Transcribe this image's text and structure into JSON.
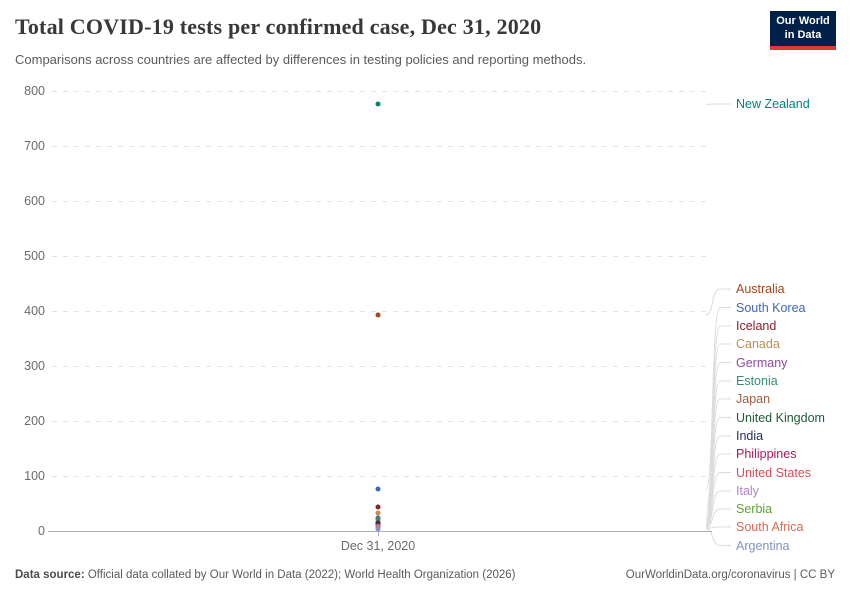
{
  "header": {
    "title": "Total COVID-19 tests per confirmed case, Dec 31, 2020",
    "subtitle": "Comparisons across countries are affected by differences in testing policies and reporting methods.",
    "logo": {
      "line1": "Our World",
      "line2": "in Data",
      "bg": "#002147",
      "stripe": "#D73C34"
    }
  },
  "chart_data": {
    "type": "scatter",
    "title": "Total COVID-19 tests per confirmed case, Dec 31, 2020",
    "x_tick_label": "Dec 31, 2020",
    "xlabel": "",
    "ylabel": "",
    "ylim": [
      0,
      800
    ],
    "yticks": [
      0,
      100,
      200,
      300,
      400,
      500,
      600,
      700,
      800
    ],
    "grid": true,
    "legend_position": "right-labels",
    "series": [
      {
        "name": "New Zealand",
        "value": 776,
        "color": "#00847E",
        "label_y": 104
      },
      {
        "name": "Australia",
        "value": 393,
        "color": "#A2461E",
        "label_y": 289
      },
      {
        "name": "South Korea",
        "value": 76,
        "color": "#4068B2",
        "label_y": 307.5
      },
      {
        "name": "Iceland",
        "value": 43,
        "color": "#8E1F2D",
        "label_y": 326
      },
      {
        "name": "Canada",
        "value": 32,
        "color": "#B98F54",
        "label_y": 344
      },
      {
        "name": "Germany",
        "value": 23,
        "color": "#8C4AA6",
        "label_y": 362.5
      },
      {
        "name": "Estonia",
        "value": 21,
        "color": "#338E71",
        "label_y": 381
      },
      {
        "name": "Japan",
        "value": 17,
        "color": "#9E5B45",
        "label_y": 399
      },
      {
        "name": "United Kingdom",
        "value": 14,
        "color": "#1D5D35",
        "label_y": 417.5
      },
      {
        "name": "India",
        "value": 12,
        "color": "#1F2C5C",
        "label_y": 436
      },
      {
        "name": "Philippines",
        "value": 10,
        "color": "#A81A5B",
        "label_y": 454
      },
      {
        "name": "United States",
        "value": 9,
        "color": "#D94C57",
        "label_y": 472.5
      },
      {
        "name": "Italy",
        "value": 8,
        "color": "#B77FC9",
        "label_y": 491
      },
      {
        "name": "Serbia",
        "value": 6,
        "color": "#61A23B",
        "label_y": 509
      },
      {
        "name": "South Africa",
        "value": 5,
        "color": "#D96855",
        "label_y": 527
      },
      {
        "name": "Argentina",
        "value": 4,
        "color": "#8193C7",
        "label_y": 545.5
      }
    ]
  },
  "footer": {
    "source_label": "Data source:",
    "source_text": " Official data collated by Our World in Data (2022); World Health Organization (2026)",
    "link_text": "OurWorldinData.org/coronavirus | CC BY"
  }
}
